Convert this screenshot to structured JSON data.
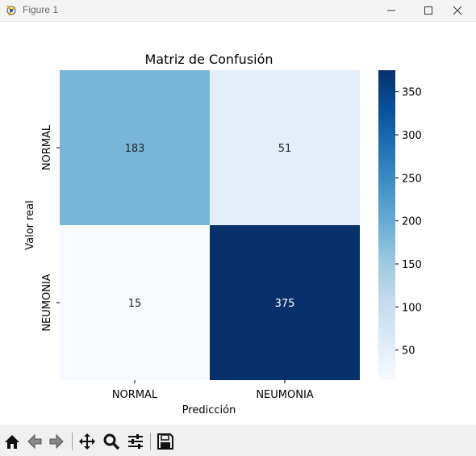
{
  "window": {
    "title": "Figure 1",
    "controls": [
      "minimize-icon",
      "maximize-icon",
      "close-icon"
    ]
  },
  "chart_data": {
    "type": "heatmap",
    "title": "Matriz de Confusión",
    "xlabel": "Predicción",
    "ylabel": "Valor real",
    "x_categories": [
      "NORMAL",
      "NEUMONIA"
    ],
    "y_categories": [
      "NORMAL",
      "NEUMONIA"
    ],
    "matrix": [
      [
        183,
        51
      ],
      [
        15,
        375
      ]
    ],
    "annotations": [
      [
        "183",
        "51"
      ],
      [
        "15",
        "375"
      ]
    ],
    "colormap": "Blues",
    "colorbar": {
      "range": [
        15,
        375
      ],
      "ticks": [
        50,
        100,
        150,
        200,
        250,
        300,
        350
      ],
      "tick_labels": [
        "50",
        "100",
        "150",
        "200",
        "250",
        "300",
        "350"
      ]
    },
    "grid": false,
    "legend": "colorbar-right"
  },
  "toolbar": {
    "buttons": [
      "home-icon",
      "back-icon",
      "forward-icon",
      "pan-icon",
      "zoom-icon",
      "configure-subplots-icon",
      "save-icon"
    ]
  }
}
